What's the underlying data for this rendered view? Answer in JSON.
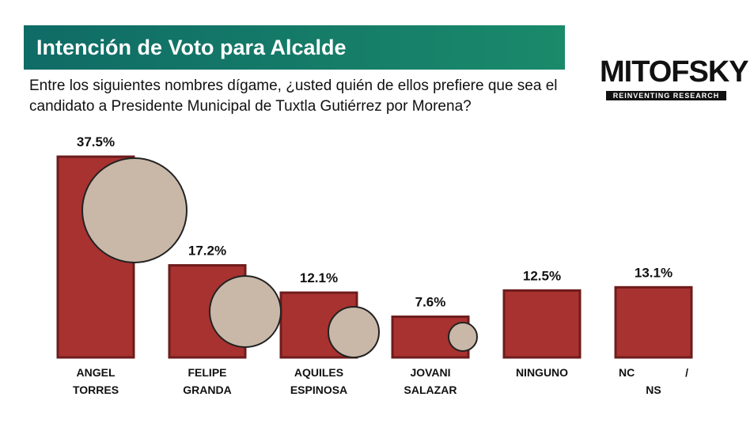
{
  "chart_data": {
    "type": "bar",
    "title": "Intención de Voto para Alcalde",
    "subtitle": "Entre los siguientes nombres dígame, ¿usted quién de ellos prefiere que sea el candidato a Presidente Municipal de Tuxtla Gutiérrez por Morena?",
    "source": "MITOFSKY",
    "source_tagline": "REINVENTING RESEARCH",
    "categories": [
      "ANGEL TORRES",
      "FELIPE GRANDA",
      "AQUILES ESPINOSA",
      "JOVANI SALAZAR",
      "NINGUNO",
      "NC / NS"
    ],
    "values": [
      37.5,
      17.2,
      12.1,
      7.6,
      12.5,
      13.1
    ],
    "value_labels": [
      "37.5%",
      "17.2%",
      "12.1%",
      "7.6%",
      "12.5%",
      "13.1%"
    ],
    "color": "#a83230"
  }
}
